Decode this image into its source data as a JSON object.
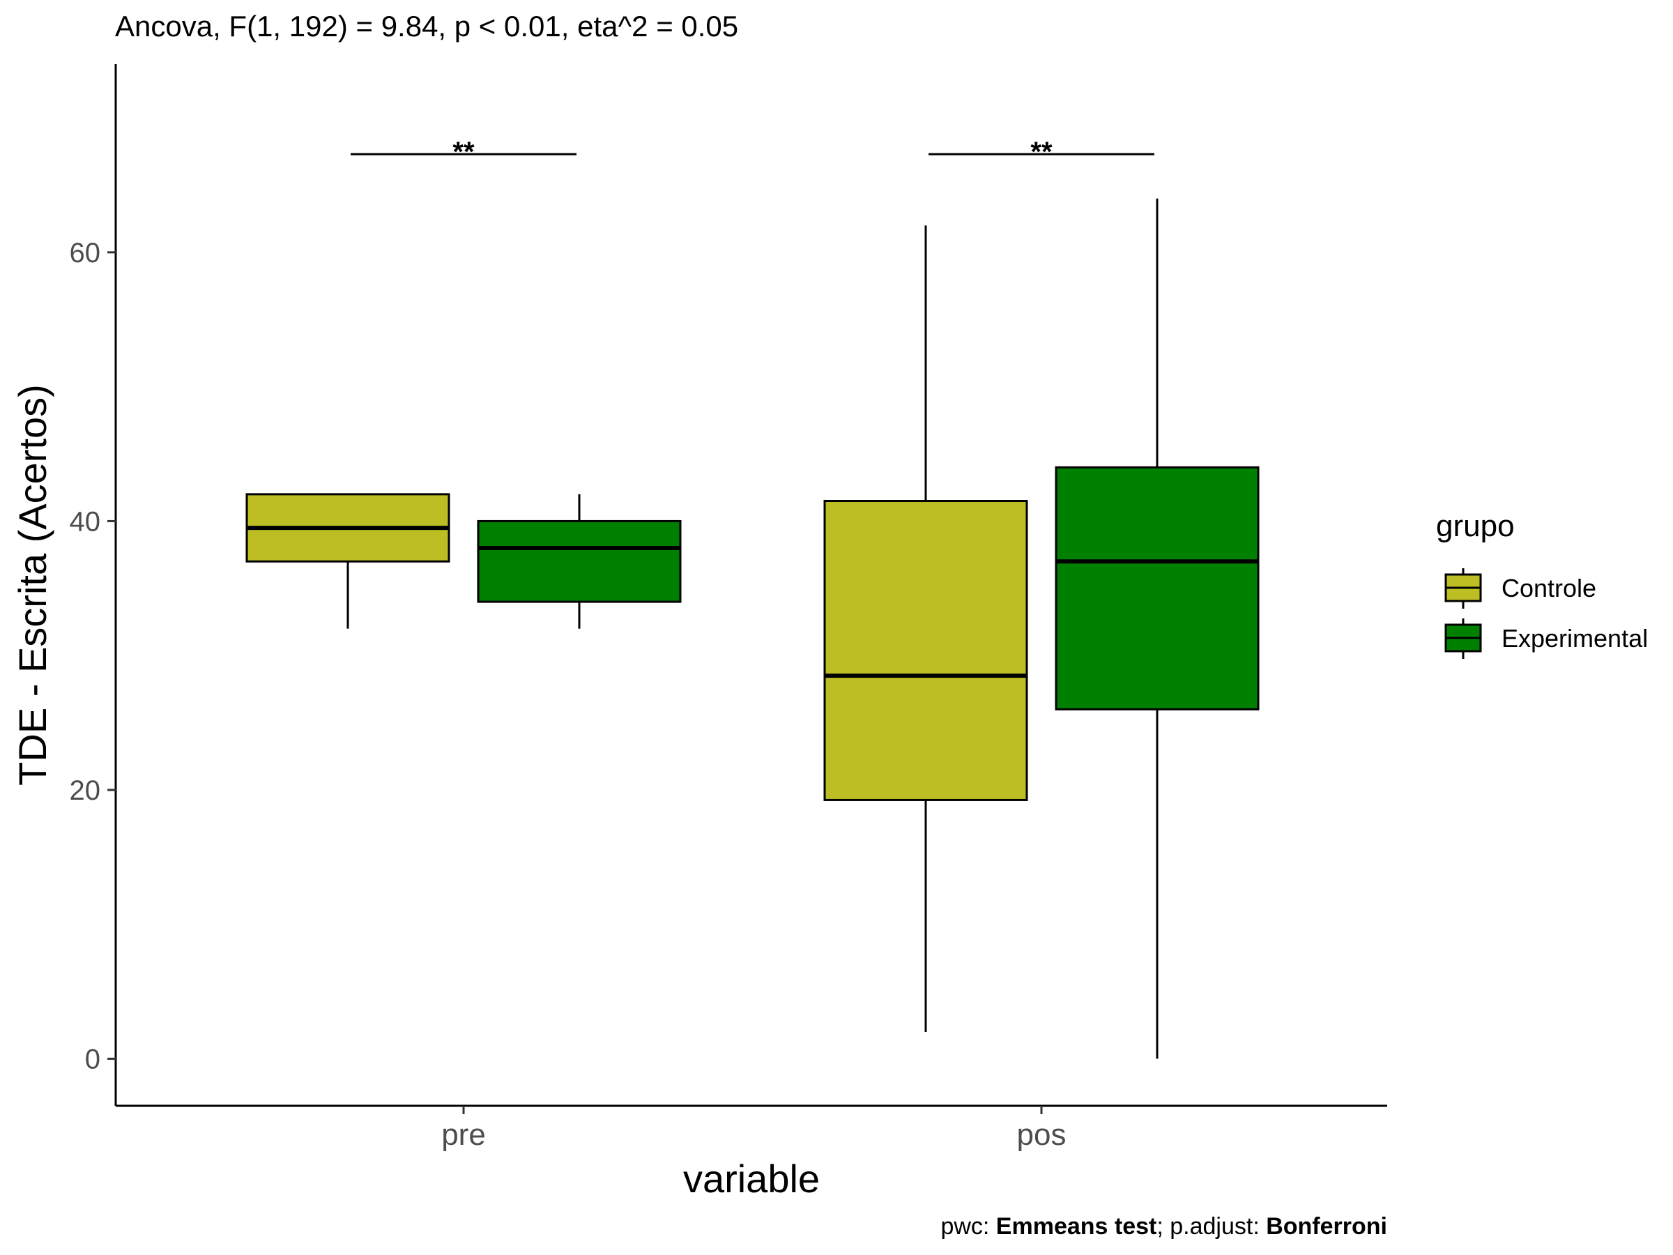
{
  "chart_data": {
    "type": "boxplot",
    "title": "Ancova, F(1, 192) = 9.84, p < 0.01, eta^2 = 0.05",
    "caption_parts": [
      {
        "text": "pwc: ",
        "bold": false
      },
      {
        "text": "Emmeans test",
        "bold": true
      },
      {
        "text": "; p.adjust: ",
        "bold": false
      },
      {
        "text": "Bonferroni",
        "bold": true
      }
    ],
    "xlabel": "variable",
    "ylabel": "TDE - Escrita (Acertos)",
    "categories": [
      "pre",
      "pos"
    ],
    "ylim": [
      -3.5,
      74
    ],
    "yticks": [
      0,
      20,
      40,
      60
    ],
    "legend": {
      "title": "grupo",
      "position": "right"
    },
    "series": [
      {
        "name": "Controle",
        "color": "#BDBD24",
        "boxes": [
          {
            "category": "pre",
            "min": 32,
            "q1": 37,
            "median": 39.5,
            "q3": 42,
            "max": 42
          },
          {
            "category": "pos",
            "min": 2,
            "q1": 19.25,
            "median": 28.5,
            "q3": 41.5,
            "max": 62
          }
        ]
      },
      {
        "name": "Experimental",
        "color": "#008000",
        "boxes": [
          {
            "category": "pre",
            "min": 32,
            "q1": 34,
            "median": 38,
            "q3": 40,
            "max": 42
          },
          {
            "category": "pos",
            "min": 0,
            "q1": 26,
            "median": 37,
            "q3": 44,
            "max": 64
          }
        ]
      }
    ],
    "annotations": [
      {
        "category": "pre",
        "y": 67.3,
        "label": "**"
      },
      {
        "category": "pos",
        "y": 67.3,
        "label": "**"
      }
    ],
    "grid": false
  }
}
